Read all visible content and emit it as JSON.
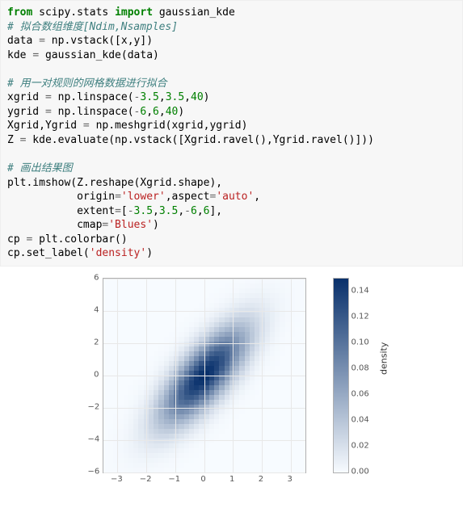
{
  "code": {
    "l1a": "from",
    "l1b": " scipy.stats ",
    "l1c": "import",
    "l1d": " gaussian_kde",
    "l2": "# 拟合数组维度[Ndim,Nsamples]",
    "l3a": "data ",
    "l3b": "=",
    "l3c": " np.vstack([x,y])",
    "l4a": "kde ",
    "l4b": "=",
    "l4c": " gaussian_kde(data)",
    "blank1": "",
    "l5": "# 用一对规则的网格数据进行拟合",
    "l6a": "xgrid ",
    "l6b": "=",
    "l6c": " np.linspace(",
    "l6d": "-",
    "l6e": "3.5",
    "l6f": ",",
    "l6g": "3.5",
    "l6h": ",",
    "l6i": "40",
    "l6j": ")",
    "l7a": "ygrid ",
    "l7b": "=",
    "l7c": " np.linspace(",
    "l7d": "-",
    "l7e": "6",
    "l7f": ",",
    "l7g": "6",
    "l7h": ",",
    "l7i": "40",
    "l7j": ")",
    "l8a": "Xgrid,Ygrid ",
    "l8b": "=",
    "l8c": " np.meshgrid(xgrid,ygrid)",
    "l9a": "Z ",
    "l9b": "=",
    "l9c": " kde.evaluate(np.vstack([Xgrid.ravel(),Ygrid.ravel()]))",
    "blank2": "",
    "l10": "# 画出结果图",
    "l11a": "plt.imshow(Z.reshape(Xgrid.shape),",
    "l12a": "           origin",
    "l12b": "=",
    "l12c": "'lower'",
    "l12d": ",aspect",
    "l12e": "=",
    "l12f": "'auto'",
    "l12g": ",",
    "l13a": "           extent",
    "l13b": "=",
    "l13c": "[",
    "l13d": "-",
    "l13e": "3.5",
    "l13f": ",",
    "l13g": "3.5",
    "l13h": ",",
    "l13i": "-",
    "l13j": "6",
    "l13k": ",",
    "l13l": "6",
    "l13m": "],",
    "l14a": "           cmap",
    "l14b": "=",
    "l14c": "'Blues'",
    "l14d": ")",
    "l15a": "cp ",
    "l15b": "=",
    "l15c": " plt.colorbar()",
    "l16a": "cp.set_label(",
    "l16b": "'density'",
    "l16c": ")"
  },
  "chart": {
    "type": "heatmap",
    "xlim": [
      -3.5,
      3.5
    ],
    "ylim": [
      -6,
      6
    ],
    "xticks": [
      -3,
      -2,
      -1,
      0,
      1,
      2,
      3
    ],
    "yticks": [
      -6,
      -4,
      -2,
      0,
      2,
      4,
      6
    ],
    "grid_color": "#e8e8e8",
    "border_color": "#b0b0b0",
    "background": "#ffffff",
    "tick_font_size": 10,
    "tick_color": "#555555",
    "nrows": 40,
    "ncols": 40,
    "cmap_low": "#f7fbff",
    "cmap_high": "#08306b",
    "mu_x": 0.0,
    "mu_y": 0.0,
    "sx": 1.0,
    "sy": 2.0,
    "rho": 0.75,
    "zmax": 0.15,
    "colorbar": {
      "label": "density",
      "ticks": [
        0.0,
        0.02,
        0.04,
        0.06,
        0.08,
        0.1,
        0.12,
        0.14
      ],
      "tick_labels": [
        "0.00",
        "0.02",
        "0.04",
        "0.06",
        "0.08",
        "0.10",
        "0.12",
        "0.14"
      ]
    }
  }
}
